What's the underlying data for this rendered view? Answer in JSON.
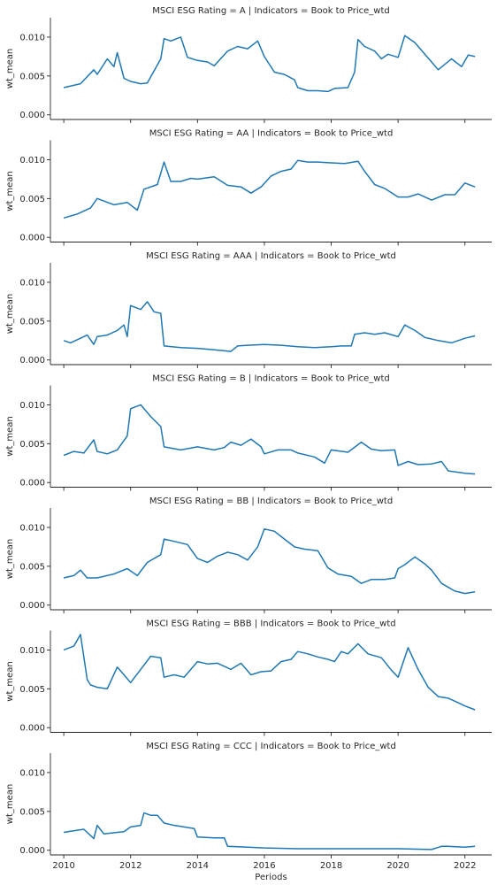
{
  "chart_data": {
    "type": "line",
    "layout": "facet-grid",
    "ylabel": "wt_mean",
    "xlabel": "Periods",
    "ylim": [
      -0.0006,
      0.0125
    ],
    "xlim": [
      2009.6,
      2022.8
    ],
    "yticks": [
      0.0,
      0.005,
      0.01
    ],
    "ytick_labels": [
      "0.000",
      "0.005",
      "0.010"
    ],
    "xticks": [
      2010,
      2012,
      2014,
      2016,
      2018,
      2020,
      2022
    ],
    "xtick_labels": [
      "2010",
      "2012",
      "2014",
      "2016",
      "2018",
      "2020",
      "2022"
    ],
    "line_color": "#1f77b4",
    "grid": false,
    "panels": [
      {
        "title": "MSCI ESG Rating = A | Indicators = Book to Price_wtd",
        "x": [
          2010.0,
          2010.5,
          2010.9,
          2011.0,
          2011.3,
          2011.5,
          2011.6,
          2011.8,
          2012.0,
          2012.3,
          2012.5,
          2012.9,
          2013.0,
          2013.2,
          2013.5,
          2013.7,
          2014.0,
          2014.3,
          2014.5,
          2014.9,
          2015.2,
          2015.5,
          2015.8,
          2016.0,
          2016.3,
          2016.6,
          2016.9,
          2017.0,
          2017.3,
          2017.6,
          2017.9,
          2018.1,
          2018.5,
          2018.7,
          2018.8,
          2019.0,
          2019.3,
          2019.5,
          2019.7,
          2020.0,
          2020.2,
          2020.5,
          2020.8,
          2021.0,
          2021.2,
          2021.6,
          2021.9,
          2022.1,
          2022.3
        ],
        "y": [
          0.0035,
          0.004,
          0.0058,
          0.0052,
          0.0072,
          0.0062,
          0.008,
          0.0047,
          0.0043,
          0.004,
          0.0041,
          0.0072,
          0.0098,
          0.0095,
          0.01,
          0.0074,
          0.007,
          0.0068,
          0.0063,
          0.0082,
          0.0088,
          0.0085,
          0.0095,
          0.0075,
          0.0055,
          0.0052,
          0.0045,
          0.0035,
          0.0031,
          0.0031,
          0.003,
          0.0034,
          0.0035,
          0.0055,
          0.0097,
          0.0088,
          0.0082,
          0.0072,
          0.0078,
          0.0074,
          0.0102,
          0.0093,
          0.0078,
          0.0068,
          0.0058,
          0.0072,
          0.0062,
          0.0077,
          0.0075
        ]
      },
      {
        "title": "MSCI ESG Rating = AA | Indicators = Book to Price_wtd",
        "x": [
          2010.0,
          2010.4,
          2010.6,
          2010.8,
          2011.0,
          2011.5,
          2011.9,
          2012.2,
          2012.4,
          2012.8,
          2013.0,
          2013.2,
          2013.5,
          2013.8,
          2014.0,
          2014.5,
          2014.9,
          2015.3,
          2015.6,
          2015.9,
          2016.2,
          2016.5,
          2016.8,
          2017.0,
          2017.3,
          2017.6,
          2018.0,
          2018.4,
          2018.8,
          2019.0,
          2019.3,
          2019.6,
          2020.0,
          2020.3,
          2020.6,
          2021.0,
          2021.4,
          2021.7,
          2022.0,
          2022.3
        ],
        "y": [
          0.0025,
          0.003,
          0.0034,
          0.0038,
          0.005,
          0.0042,
          0.0045,
          0.0035,
          0.0062,
          0.0068,
          0.0097,
          0.0072,
          0.0072,
          0.0076,
          0.0075,
          0.0078,
          0.0067,
          0.0065,
          0.0057,
          0.0065,
          0.0079,
          0.0085,
          0.0088,
          0.0099,
          0.0097,
          0.0097,
          0.0096,
          0.0095,
          0.0098,
          0.0085,
          0.0068,
          0.0063,
          0.0052,
          0.0052,
          0.0056,
          0.0048,
          0.0055,
          0.0055,
          0.007,
          0.0065
        ]
      },
      {
        "title": "MSCI ESG Rating = AAA | Indicators = Book to Price_wtd",
        "x": [
          2010.0,
          2010.2,
          2010.5,
          2010.7,
          2010.9,
          2011.0,
          2011.3,
          2011.6,
          2011.8,
          2011.9,
          2012.0,
          2012.3,
          2012.5,
          2012.7,
          2012.9,
          2013.0,
          2013.5,
          2014.0,
          2014.5,
          2015.0,
          2015.2,
          2015.5,
          2016.0,
          2016.5,
          2017.0,
          2017.5,
          2018.0,
          2018.3,
          2018.6,
          2018.7,
          2019.0,
          2019.3,
          2019.6,
          2020.0,
          2020.2,
          2020.5,
          2020.8,
          2021.2,
          2021.6,
          2022.0,
          2022.3
        ],
        "y": [
          0.0025,
          0.0022,
          0.0028,
          0.0032,
          0.002,
          0.003,
          0.0032,
          0.0038,
          0.0045,
          0.003,
          0.007,
          0.0065,
          0.0075,
          0.0062,
          0.006,
          0.0018,
          0.0016,
          0.0015,
          0.0013,
          0.0011,
          0.0018,
          0.0019,
          0.002,
          0.0019,
          0.0017,
          0.0016,
          0.0017,
          0.0018,
          0.0018,
          0.0033,
          0.0035,
          0.0033,
          0.0035,
          0.003,
          0.0045,
          0.0038,
          0.0029,
          0.0025,
          0.0022,
          0.0028,
          0.0031
        ]
      },
      {
        "title": "MSCI ESG Rating = B | Indicators = Book to Price_wtd",
        "x": [
          2010.0,
          2010.3,
          2010.6,
          2010.9,
          2011.0,
          2011.3,
          2011.6,
          2011.9,
          2012.0,
          2012.3,
          2012.6,
          2012.9,
          2013.0,
          2013.5,
          2014.0,
          2014.5,
          2014.8,
          2015.0,
          2015.3,
          2015.6,
          2015.9,
          2016.0,
          2016.4,
          2016.8,
          2017.0,
          2017.5,
          2017.8,
          2018.0,
          2018.5,
          2018.9,
          2019.2,
          2019.5,
          2019.9,
          2020.0,
          2020.3,
          2020.6,
          2021.0,
          2021.3,
          2021.5,
          2022.0,
          2022.3
        ],
        "y": [
          0.0035,
          0.004,
          0.0038,
          0.0055,
          0.004,
          0.0037,
          0.0042,
          0.006,
          0.0095,
          0.01,
          0.0085,
          0.0072,
          0.0046,
          0.0042,
          0.0046,
          0.0042,
          0.0045,
          0.0052,
          0.0048,
          0.0056,
          0.0046,
          0.0037,
          0.0042,
          0.0042,
          0.0038,
          0.0033,
          0.0025,
          0.0042,
          0.0039,
          0.0052,
          0.0043,
          0.0041,
          0.0042,
          0.0022,
          0.0027,
          0.0023,
          0.0024,
          0.0027,
          0.0015,
          0.0012,
          0.0011
        ]
      },
      {
        "title": "MSCI ESG Rating = BB | Indicators = Book to Price_wtd",
        "x": [
          2010.0,
          2010.3,
          2010.5,
          2010.7,
          2011.0,
          2011.5,
          2011.9,
          2012.2,
          2012.5,
          2012.9,
          2013.0,
          2013.3,
          2013.7,
          2014.0,
          2014.3,
          2014.6,
          2014.9,
          2015.2,
          2015.5,
          2015.8,
          2016.0,
          2016.3,
          2016.6,
          2016.9,
          2017.2,
          2017.6,
          2017.9,
          2018.2,
          2018.6,
          2018.9,
          2019.2,
          2019.6,
          2019.9,
          2020.0,
          2020.2,
          2020.5,
          2020.8,
          2021.0,
          2021.3,
          2021.7,
          2022.0,
          2022.3
        ],
        "y": [
          0.0035,
          0.0038,
          0.0045,
          0.0035,
          0.0035,
          0.004,
          0.0047,
          0.0038,
          0.0055,
          0.0065,
          0.0085,
          0.0082,
          0.0078,
          0.006,
          0.0055,
          0.0063,
          0.0068,
          0.0065,
          0.0058,
          0.0075,
          0.0098,
          0.0095,
          0.0085,
          0.0075,
          0.0072,
          0.007,
          0.0048,
          0.004,
          0.0037,
          0.0028,
          0.0033,
          0.0033,
          0.0035,
          0.0047,
          0.0052,
          0.0062,
          0.0053,
          0.0045,
          0.0028,
          0.0018,
          0.0015,
          0.0017
        ]
      },
      {
        "title": "MSCI ESG Rating = BBB | Indicators = Book to Price_wtd",
        "x": [
          2010.0,
          2010.3,
          2010.5,
          2010.7,
          2010.8,
          2011.0,
          2011.3,
          2011.6,
          2011.8,
          2012.0,
          2012.3,
          2012.6,
          2012.9,
          2013.0,
          2013.3,
          2013.6,
          2014.0,
          2014.3,
          2014.6,
          2015.0,
          2015.3,
          2015.6,
          2015.9,
          2016.2,
          2016.5,
          2016.8,
          2017.0,
          2017.3,
          2017.6,
          2017.9,
          2018.1,
          2018.3,
          2018.5,
          2018.8,
          2019.1,
          2019.5,
          2019.8,
          2020.0,
          2020.3,
          2020.6,
          2020.9,
          2021.2,
          2021.5,
          2021.8,
          2022.0,
          2022.3
        ],
        "y": [
          0.01,
          0.0105,
          0.012,
          0.0062,
          0.0055,
          0.0052,
          0.005,
          0.0078,
          0.0068,
          0.0058,
          0.0075,
          0.0092,
          0.009,
          0.0065,
          0.0068,
          0.0065,
          0.0085,
          0.0082,
          0.0083,
          0.0075,
          0.0083,
          0.0068,
          0.0072,
          0.0073,
          0.0085,
          0.0088,
          0.0098,
          0.0095,
          0.0091,
          0.0088,
          0.0085,
          0.0098,
          0.0095,
          0.0108,
          0.0095,
          0.009,
          0.0074,
          0.0065,
          0.0103,
          0.0075,
          0.0052,
          0.004,
          0.0038,
          0.0032,
          0.0028,
          0.0023
        ]
      },
      {
        "title": "MSCI ESG Rating = CCC | Indicators = Book to Price_wtd",
        "x": [
          2010.0,
          2010.3,
          2010.6,
          2010.9,
          2011.0,
          2011.2,
          2011.4,
          2011.8,
          2012.0,
          2012.3,
          2012.4,
          2012.6,
          2012.8,
          2013.0,
          2013.3,
          2013.6,
          2013.9,
          2014.0,
          2014.5,
          2014.8,
          2014.9,
          2015.5,
          2016.0,
          2017.0,
          2018.0,
          2019.0,
          2020.0,
          2021.0,
          2021.3,
          2021.5,
          2022.0,
          2022.3
        ],
        "y": [
          0.0023,
          0.0025,
          0.0027,
          0.0015,
          0.0032,
          0.0021,
          0.0022,
          0.0024,
          0.003,
          0.0032,
          0.0048,
          0.0045,
          0.0045,
          0.0035,
          0.0032,
          0.003,
          0.0028,
          0.0017,
          0.0016,
          0.0016,
          0.0005,
          0.0004,
          0.0003,
          0.0002,
          0.0002,
          0.0002,
          0.0002,
          0.0001,
          0.0005,
          0.0005,
          0.0004,
          0.0005
        ]
      }
    ]
  }
}
